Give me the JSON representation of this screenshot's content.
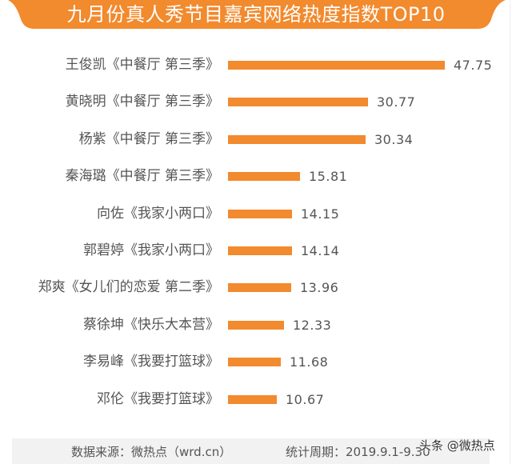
{
  "title": "九月份真人秀节目嘉宾网络热度指数TOP10",
  "colors": {
    "accent": "#f28a2e",
    "text": "#555555",
    "footer_bg": "#f2f2f2"
  },
  "chart_data": {
    "type": "bar",
    "orientation": "horizontal",
    "title": "九月份真人秀节目嘉宾网络热度指数TOP10",
    "xlabel": "",
    "ylabel": "",
    "grid": false,
    "legend": null,
    "categories": [
      "王俊凯《中餐厅 第三季》",
      "黄晓明《中餐厅 第三季》",
      "杨紫《中餐厅 第三季》",
      "秦海璐《中餐厅 第三季》",
      "向佐《我家小两口》",
      "郭碧婷《我家小两口》",
      "郑爽《女儿们的恋爱 第二季》",
      "蔡徐坤《快乐大本营》",
      "李易峰《我要打篮球》",
      "邓伦《我要打篮球》"
    ],
    "values": [
      47.75,
      30.77,
      30.34,
      15.81,
      14.15,
      14.14,
      13.96,
      12.33,
      11.68,
      10.67
    ],
    "value_labels": [
      "47.75",
      "30.77",
      "30.34",
      "15.81",
      "14.15",
      "14.14",
      "13.96",
      "12.33",
      "11.68",
      "10.67"
    ]
  },
  "rows": [
    {
      "label": "王俊凯《中餐厅 第三季》",
      "value": "47.75"
    },
    {
      "label": "黄晓明《中餐厅 第三季》",
      "value": "30.77"
    },
    {
      "label": "杨紫《中餐厅 第三季》",
      "value": "30.34"
    },
    {
      "label": "秦海璐《中餐厅 第三季》",
      "value": "15.81"
    },
    {
      "label": "向佐《我家小两口》",
      "value": "14.15"
    },
    {
      "label": "郭碧婷《我家小两口》",
      "value": "14.14"
    },
    {
      "label": "郑爽《女儿们的恋爱 第二季》",
      "value": "13.96"
    },
    {
      "label": "蔡徐坤《快乐大本营》",
      "value": "12.33"
    },
    {
      "label": "李易峰《我要打篮球》",
      "value": "11.68"
    },
    {
      "label": "邓伦《我要打篮球》",
      "value": "10.67"
    }
  ],
  "footer": {
    "source": "数据来源：微热点（wrd.cn）",
    "period": "统计周期：2019.9.1-9.30"
  },
  "watermark": "头条 @微热点"
}
